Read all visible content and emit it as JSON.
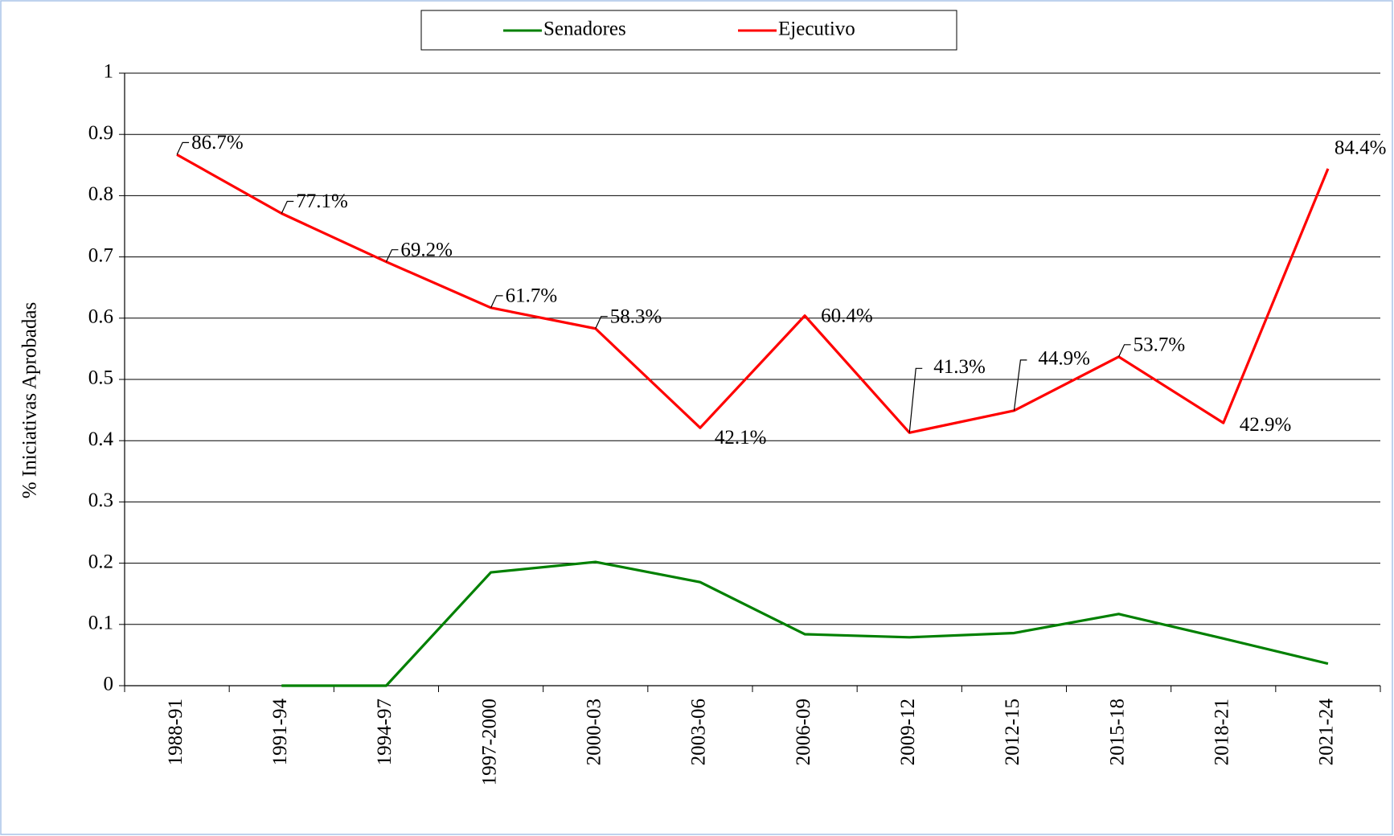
{
  "chart_data": {
    "type": "line",
    "y_label": "% Iniciativas  Aprobadas",
    "categories": [
      "1988-91",
      "1991-94",
      "1994-97",
      "1997-2000",
      "2000-03",
      "2003-06",
      "2006-09",
      "2009-12",
      "2012-15",
      "2015-18",
      "2018-21",
      "2021-24"
    ],
    "series": [
      {
        "name": "Senadores",
        "color": "#008000",
        "values": [
          null,
          0,
          0,
          0.185,
          0.202,
          0.169,
          0.084,
          0.079,
          0.086,
          0.117,
          0.077,
          0.036
        ]
      },
      {
        "name": "Ejecutivo",
        "color": "#ff0000",
        "values": [
          0.867,
          0.771,
          0.692,
          0.617,
          0.583,
          0.421,
          0.604,
          0.413,
          0.449,
          0.537,
          0.429,
          0.844
        ],
        "value_labels": [
          "86.7%",
          "77.1%",
          "69.2%",
          "61.7%",
          "58.3%",
          "42.1%",
          "60.4%",
          "41.3%",
          "44.9%",
          "53.7%",
          "42.9%",
          "84.4%"
        ]
      }
    ],
    "ylim": [
      0,
      1
    ],
    "yticks": [
      0,
      0.1,
      0.2,
      0.3,
      0.4,
      0.5,
      0.6,
      0.7,
      0.8,
      0.9,
      1
    ],
    "grid": true,
    "legend": "top"
  }
}
